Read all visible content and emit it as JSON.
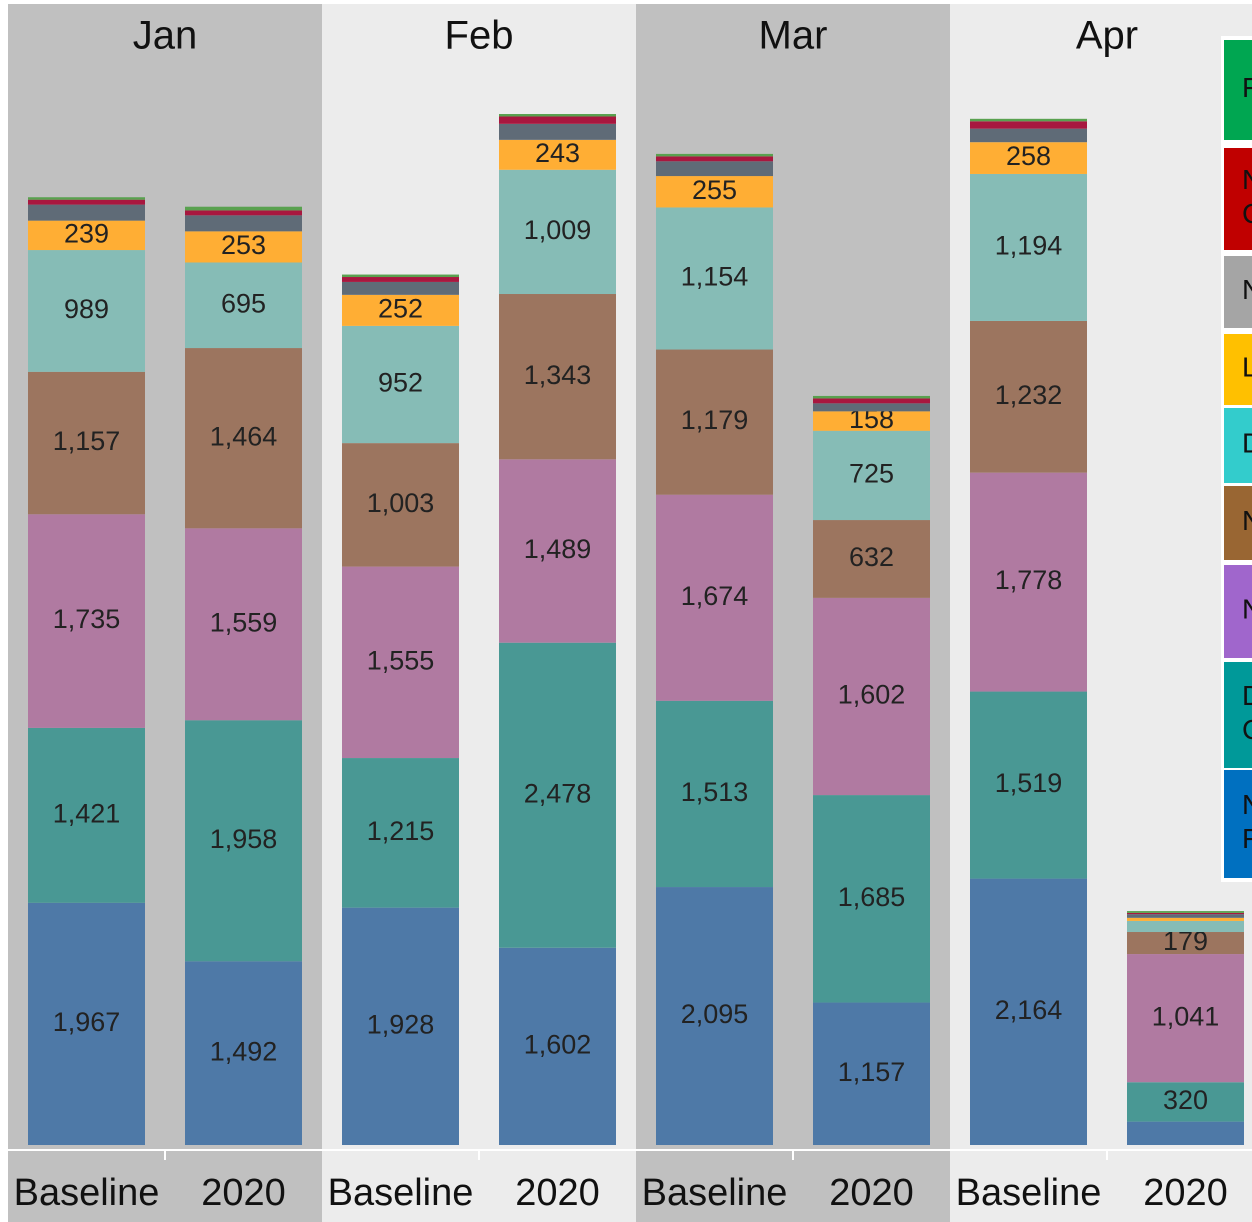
{
  "chart_data": {
    "type": "stacked-bar",
    "groups": [
      "Jan",
      "Feb",
      "Mar",
      "Apr"
    ],
    "categories": [
      "Baseline",
      "2020",
      "Baseline",
      "2020",
      "Baseline",
      "2020",
      "Baseline",
      "2020"
    ],
    "ylim": [
      0,
      9300
    ],
    "series": [
      {
        "name": "N\nF",
        "color": "#4e79a7",
        "legend_color": "#0070c0",
        "values": [
          1967,
          1492,
          1928,
          1602,
          2095,
          1157,
          2164,
          190
        ],
        "value_labels": [
          "1,967",
          "1,492",
          "1,928",
          "1,602",
          "2,095",
          "1,157",
          "2,164",
          null
        ]
      },
      {
        "name": "D\nC",
        "color": "#499894",
        "legend_color": "#009999",
        "values": [
          1421,
          1958,
          1215,
          2478,
          1513,
          1685,
          1519,
          320
        ],
        "value_labels": [
          "1,421",
          "1,958",
          "1,215",
          "2,478",
          "1,513",
          "1,685",
          "1,519",
          "320"
        ]
      },
      {
        "name": "N",
        "color": "#b07aa1",
        "legend_color": "#a066cc",
        "values": [
          1735,
          1559,
          1555,
          1489,
          1674,
          1602,
          1778,
          1041
        ],
        "value_labels": [
          "1,735",
          "1,559",
          "1,555",
          "1,489",
          "1,674",
          "1,602",
          "1,778",
          "1,041"
        ]
      },
      {
        "name": "N",
        "color": "#9c755f",
        "legend_color": "#996633",
        "values": [
          1157,
          1464,
          1003,
          1343,
          1179,
          632,
          1232,
          179
        ],
        "value_labels": [
          "1,157",
          "1,464",
          "1,003",
          "1,343",
          "1,179",
          "632",
          "1,232",
          "179"
        ]
      },
      {
        "name": "D",
        "color": "#86bcb6",
        "legend_color": "#33cccc",
        "values": [
          989,
          695,
          952,
          1009,
          1154,
          725,
          1194,
          90
        ],
        "value_labels": [
          "989",
          "695",
          "952",
          "1,009",
          "1,154",
          "725",
          "1,194",
          null
        ]
      },
      {
        "name": "L",
        "color": "#ffae34",
        "legend_color": "#ffc000",
        "values": [
          239,
          253,
          252,
          243,
          255,
          158,
          258,
          25
        ],
        "value_labels": [
          "239",
          "253",
          "252",
          "243",
          "255",
          "158",
          "258",
          null
        ]
      },
      {
        "name": "N",
        "color": "#5f6b77",
        "legend_color": "#a5a5a5",
        "values": [
          130,
          130,
          105,
          130,
          120,
          65,
          110,
          30
        ],
        "value_labels": [
          null,
          null,
          null,
          null,
          null,
          null,
          null,
          null
        ]
      },
      {
        "name": "N\nC",
        "color": "#a8173f",
        "legend_color": "#c00000",
        "values": [
          40,
          40,
          40,
          60,
          40,
          40,
          60,
          10
        ],
        "value_labels": [
          null,
          null,
          null,
          null,
          null,
          null,
          null,
          null
        ]
      },
      {
        "name": "F",
        "color": "#59a14f",
        "legend_color": "#00a651",
        "values": [
          20,
          30,
          20,
          20,
          20,
          20,
          20,
          15
        ],
        "value_labels": [
          null,
          null,
          null,
          null,
          null,
          null,
          null,
          null
        ]
      }
    ]
  }
}
